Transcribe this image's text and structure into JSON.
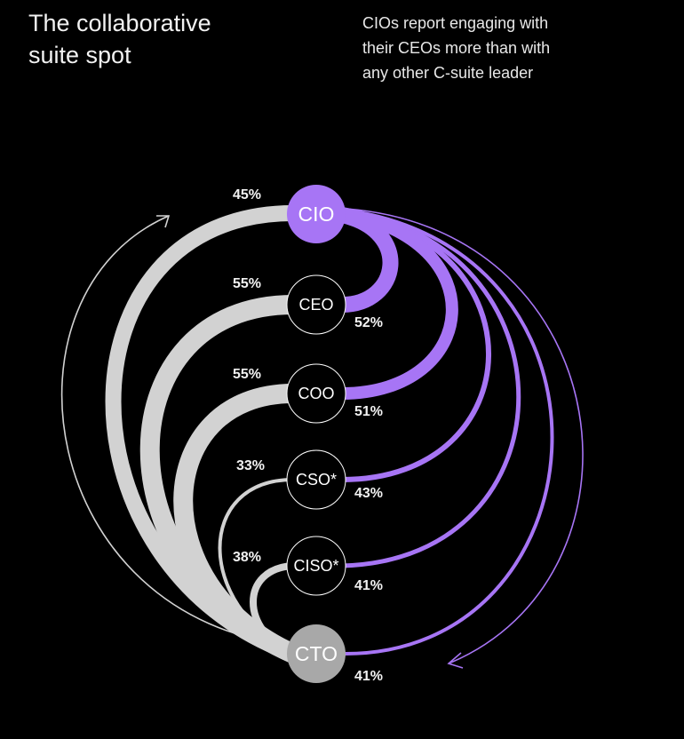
{
  "header": {
    "title_lines": [
      "The collaborative",
      "suite spot"
    ],
    "subtitle_lines": [
      "CIOs report engaging with",
      "their CEOs more than with",
      "any other C-suite leader"
    ]
  },
  "colors": {
    "background": "#000000",
    "purple": "#a775f5",
    "grey": "#d2d2d2",
    "cto_node": "#a8a8a8",
    "text": "#ffffff"
  },
  "chart_data": {
    "type": "diagram",
    "title": "The collaborative suite spot",
    "nodes": [
      {
        "id": "CIO",
        "label": "CIO",
        "left_value": "45%"
      },
      {
        "id": "CEO",
        "label": "CEO",
        "left_value": "55%",
        "right_value": "52%"
      },
      {
        "id": "COO",
        "label": "COO",
        "left_value": "55%",
        "right_value": "51%"
      },
      {
        "id": "CSO",
        "label": "CSO*",
        "left_value": "33%",
        "right_value": "43%"
      },
      {
        "id": "CISO",
        "label": "CISO*",
        "left_value": "38%",
        "right_value": "41%"
      },
      {
        "id": "CTO",
        "label": "CTO",
        "right_value": "41%"
      }
    ],
    "links_from_cio_percent": {
      "CEO": 52,
      "COO": 51,
      "CSO": 43,
      "CISO": 41,
      "CTO": 41
    },
    "links_from_cto_percent": {
      "CIO": 45,
      "CEO": 55,
      "COO": 55,
      "CSO": 33,
      "CISO": 38
    }
  }
}
